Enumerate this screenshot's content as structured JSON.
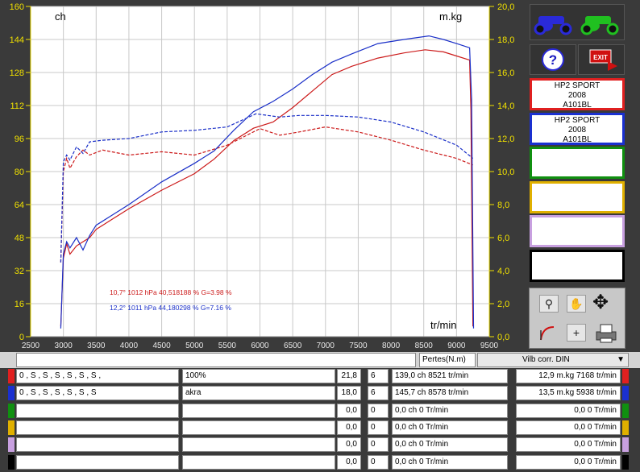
{
  "chart_data": {
    "type": "line",
    "left_axis_label": "ch",
    "right_axis_label": "m.kg",
    "x_axis_label": "tr/min",
    "xlim": [
      2500,
      9500
    ],
    "ylim_left": [
      0,
      160
    ],
    "ylim_right": [
      0,
      20
    ],
    "x_ticks": [
      2500,
      3000,
      3500,
      4000,
      4500,
      5000,
      5500,
      6000,
      6500,
      7000,
      7500,
      8000,
      8500,
      9000,
      9500
    ],
    "y_ticks_left": [
      0,
      16,
      32,
      48,
      64,
      80,
      96,
      112,
      128,
      144,
      160
    ],
    "y_ticks_right": [
      "0,0",
      "2,0",
      "4,0",
      "6,0",
      "8,0",
      "10,0",
      "12,0",
      "14,0",
      "16,0",
      "18,0",
      "20,0"
    ],
    "grid": true,
    "series": [
      {
        "name": "HP2 SPORT 2008 A101BL (red) power",
        "color": "#cc1a1a",
        "axis": "left",
        "style": "solid",
        "x": [
          2960,
          3000,
          3050,
          3100,
          3200,
          3300,
          3400,
          3500,
          3700,
          4000,
          4500,
          5000,
          5300,
          5600,
          5900,
          6200,
          6500,
          6800,
          7100,
          7400,
          7800,
          8200,
          8521,
          8800,
          9000,
          9200,
          9220,
          9250
        ],
        "y": [
          5,
          38,
          45,
          40,
          44,
          46,
          48,
          52,
          56,
          62,
          71,
          79,
          86,
          95,
          101,
          104,
          111,
          119,
          127,
          131,
          135,
          137.5,
          139,
          138,
          136,
          134,
          110,
          5
        ]
      },
      {
        "name": "HP2 SPORT 2008 A101BL (red) torque",
        "color": "#cc1a1a",
        "axis": "right",
        "style": "dashed",
        "x": [
          2960,
          3000,
          3050,
          3100,
          3200,
          3300,
          3400,
          3600,
          4000,
          4500,
          5000,
          5500,
          6000,
          6300,
          6600,
          7000,
          7500,
          8000,
          8500,
          9000,
          9250
        ],
        "y": [
          4.5,
          10.0,
          10.8,
          10.2,
          10.9,
          11.3,
          11.0,
          11.3,
          11.0,
          11.2,
          11.0,
          11.6,
          12.6,
          12.2,
          12.4,
          12.7,
          12.4,
          11.9,
          11.3,
          10.8,
          10.4
        ]
      },
      {
        "name": "HP2 SPORT 2008 A101BL (blue) power",
        "color": "#1a2fc8",
        "axis": "left",
        "style": "solid",
        "x": [
          2960,
          3000,
          3050,
          3100,
          3200,
          3300,
          3400,
          3500,
          3700,
          4000,
          4500,
          5000,
          5300,
          5600,
          5900,
          6200,
          6500,
          6800,
          7100,
          7400,
          7800,
          8200,
          8578,
          8800,
          9000,
          9200,
          9230,
          9260
        ],
        "y": [
          4,
          40,
          46,
          43,
          48,
          42,
          49,
          54,
          58,
          64,
          75,
          84,
          90,
          100,
          109,
          114,
          120,
          127,
          133,
          137,
          142,
          144,
          145.7,
          144,
          142,
          140,
          115,
          4
        ]
      },
      {
        "name": "HP2 SPORT 2008 A101BL (blue) torque",
        "color": "#1a2fc8",
        "axis": "right",
        "style": "dashed",
        "x": [
          2960,
          3000,
          3050,
          3100,
          3200,
          3300,
          3400,
          3600,
          4000,
          4500,
          5000,
          5500,
          5938,
          6300,
          6600,
          7000,
          7500,
          8000,
          8500,
          9000,
          9250
        ],
        "y": [
          4.5,
          10.6,
          11.0,
          10.7,
          11.5,
          11.1,
          11.8,
          11.9,
          12.0,
          12.4,
          12.5,
          12.7,
          13.5,
          13.3,
          13.4,
          13.4,
          13.3,
          13.0,
          12.4,
          11.6,
          10.8
        ]
      }
    ],
    "annotations": [
      {
        "text": "10,7°  1012 hPa  40,518188 %     G=3.98 %",
        "color": "#cc1a1a"
      },
      {
        "text": "12,2°  1011 hPa  44,180298 %     G=7.16 %",
        "color": "#1a2fc8"
      }
    ]
  },
  "legend_slots": [
    {
      "lines": [
        "HP2 SPORT",
        "2008",
        "A101BL"
      ],
      "color": "#e02020"
    },
    {
      "lines": [
        "HP2 SPORT",
        "2008",
        "A101BL"
      ],
      "color": "#1a30d0"
    },
    {
      "lines": [
        "",
        "",
        ""
      ],
      "color": "#109010"
    },
    {
      "lines": [
        "",
        "",
        ""
      ],
      "color": "#e0b000"
    },
    {
      "lines": [
        "",
        "",
        ""
      ],
      "color": "#c8a0e0"
    },
    {
      "lines": [
        "",
        "",
        ""
      ],
      "color": "#000000"
    }
  ],
  "controls": {
    "pertes_label": "Pertes(N.m)",
    "correction_value": "Vilb corr. DIN"
  },
  "table_rows": [
    {
      "color": "#e02020",
      "settings": "0 , S , S , S , S , S , S ,",
      "desc": "100%",
      "v1": "21,8",
      "v2": "6",
      "power": "139,0 ch 8521 tr/min",
      "torque": "12,9 m.kg 7168 tr/min"
    },
    {
      "color": "#1a30d0",
      "settings": "0      , S       , S       , S       , S       , S       , S",
      "desc": "akra",
      "v1": "18,0",
      "v2": "6",
      "power": "145,7 ch 8578 tr/min",
      "torque": "13,5 m.kg 5938 tr/min"
    },
    {
      "color": "#109010",
      "settings": "",
      "desc": "",
      "v1": "0,0",
      "v2": "0",
      "power": "0,0 ch 0 Tr/min",
      "torque": "0,0  0 Tr/min"
    },
    {
      "color": "#e0b000",
      "settings": "",
      "desc": "",
      "v1": "0,0",
      "v2": "0",
      "power": "0,0 ch 0 Tr/min",
      "torque": "0,0  0 Tr/min"
    },
    {
      "color": "#c8a0e0",
      "settings": "",
      "desc": "",
      "v1": "0,0",
      "v2": "0",
      "power": "0,0 ch 0 Tr/min",
      "torque": "0,0  0 Tr/min"
    },
    {
      "color": "#000000",
      "settings": "",
      "desc": "",
      "v1": "0,0",
      "v2": "0",
      "power": "0,0 ch 0 Tr/min",
      "torque": "0,0  0 Tr/min"
    }
  ],
  "icons": [
    "motorcycle-blue-icon",
    "motorcycle-green-icon",
    "help-icon",
    "exit-icon",
    "zoom-icon",
    "hand-pan-icon",
    "move-arrows-icon",
    "curve-edit-icon",
    "plus-icon",
    "printer-icon"
  ],
  "exit_label": "EXIT"
}
